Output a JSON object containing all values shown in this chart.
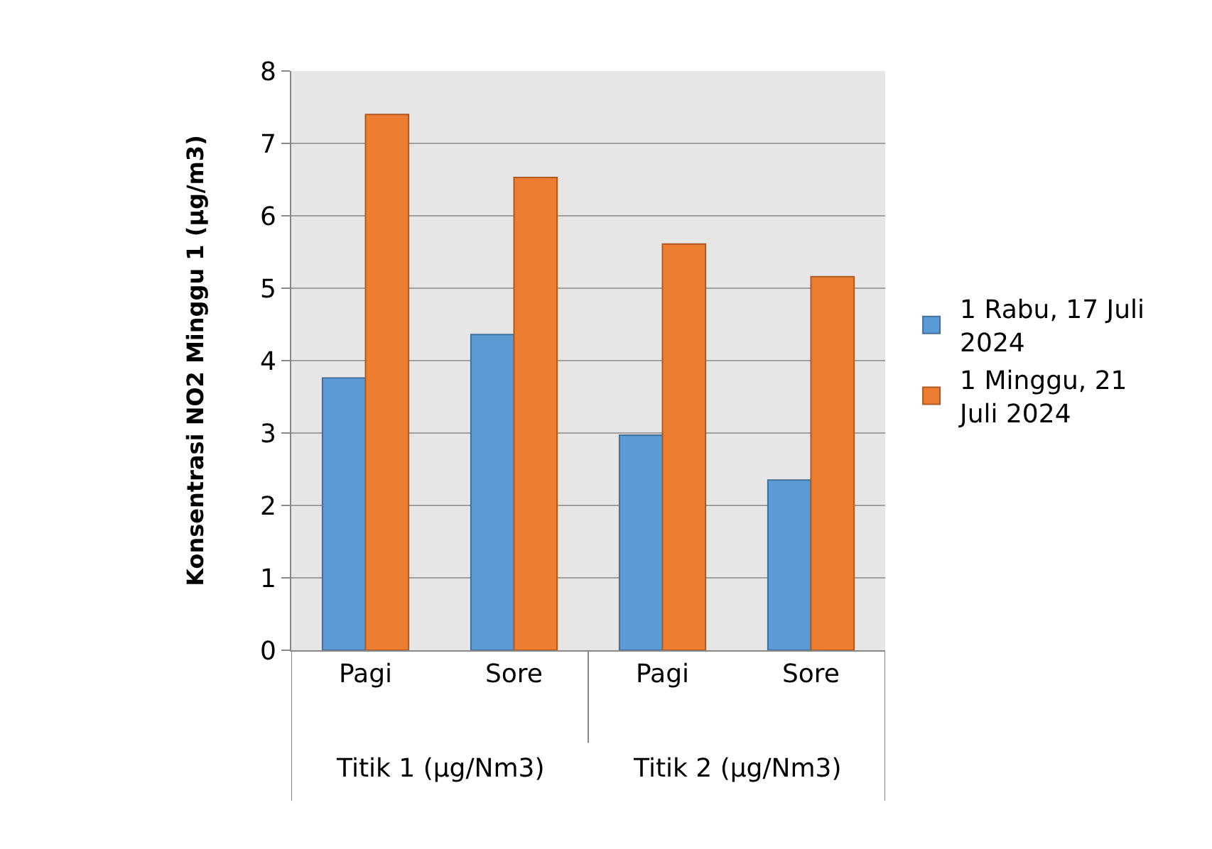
{
  "chart_data": {
    "type": "bar",
    "ylabel": "Konsentrasi NO2 Minggu 1 (µg/m3)",
    "categories": [
      "Pagi",
      "Sore",
      "Pagi",
      "Sore"
    ],
    "series": [
      {
        "name": "1 Rabu, 17 Juli 2024",
        "color": "#5b9bd5",
        "values": [
          3.76,
          4.36,
          2.97,
          2.35
        ]
      },
      {
        "name": "1 Minggu, 21 Juli 2024",
        "color": "#ed7d31",
        "values": [
          7.4,
          6.53,
          5.61,
          5.16
        ]
      }
    ],
    "annotations": [
      "Titik 1 (µg/Nm3)",
      "Titik 2 (µg/Nm3)"
    ],
    "ylim": [
      0,
      8
    ],
    "yticks": [
      0,
      1,
      2,
      3,
      4,
      5,
      6,
      7,
      8
    ],
    "grid": "y",
    "legend": "right"
  }
}
